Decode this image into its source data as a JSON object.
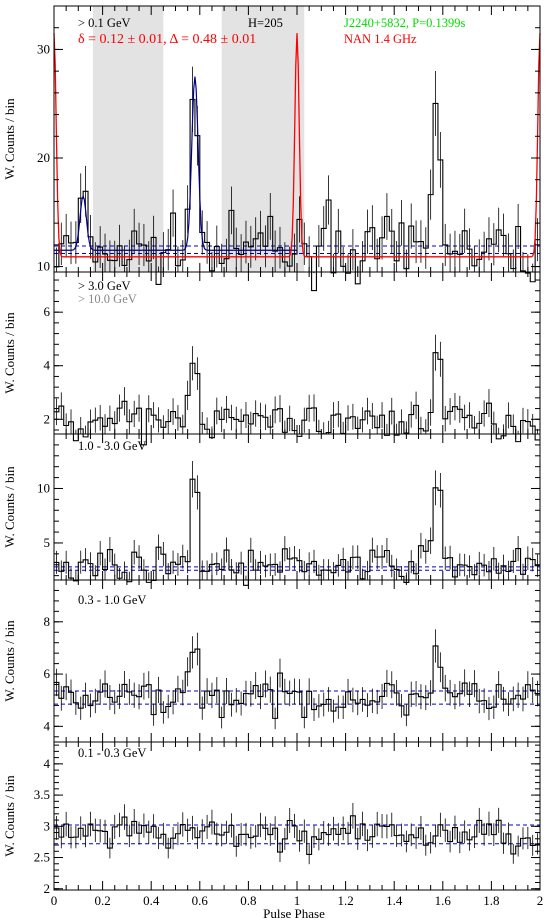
{
  "chart_data": [
    {
      "type": "line",
      "panel": "all",
      "ylabel": "W. Counts / bin",
      "ylim": [
        9.5,
        34
      ],
      "yticks": [
        10,
        20,
        30
      ],
      "xlim": [
        0,
        2
      ],
      "annotations": [
        {
          "text": "> 0.1 GeV",
          "color": "#000000",
          "pos": "top-left"
        },
        {
          "text": "δ = 0.12 ± 0.01, Δ = 0.48 ± 0.01",
          "color": "#ff0000",
          "pos": "top-left-2"
        },
        {
          "text": "H=205",
          "color": "#000000",
          "pos": "top-center"
        },
        {
          "text": "J2240+5832, P=0.1399s",
          "color": "#00dd00",
          "pos": "top-right"
        },
        {
          "text": "NAN 1.4 GHz",
          "color": "#ff0000",
          "pos": "top-right-2"
        }
      ],
      "shaded_phase_ranges": [
        [
          0.16,
          0.45
        ],
        [
          0.69,
          1.03
        ]
      ],
      "background_lines": [
        11.2,
        11.9
      ],
      "series": [
        {
          "style": "histogram",
          "color": "#000000",
          "peaks": [
            0.12,
            0.58,
            0.89,
            1.12,
            1.58
          ],
          "peak_values": [
            16.4,
            27.5,
            13.6,
            15.2,
            27.5
          ],
          "baseline": 11.3
        },
        {
          "style": "fit",
          "color": "#00008b",
          "peaks": [
            0.12,
            0.58
          ],
          "baseline": 11.5
        },
        {
          "style": "radio",
          "color": "#ff0000",
          "peak": 1.0,
          "peak_value": 31.5,
          "baseline": 10.9
        }
      ]
    },
    {
      "type": "line",
      "panel": "high",
      "ylabel": "W. Counts / bin",
      "ylim": [
        1.45,
        7.5
      ],
      "yticks": [
        2,
        4,
        6
      ],
      "xlim": [
        0,
        2
      ],
      "annotations": [
        {
          "text": "> 3.0 GeV",
          "color": "#000000",
          "pos": "top-left"
        },
        {
          "text": "> 10.0 GeV",
          "color": "#888888",
          "pos": "top-left-2"
        }
      ],
      "background_lines": [],
      "series": [
        {
          "style": "histogram",
          "color": "#000000",
          "peaks": [
            0.58,
            1.58
          ],
          "peak_values": [
            5.1,
            5.1
          ],
          "baseline": 1.9
        }
      ]
    },
    {
      "type": "line",
      "panel": "mid-high",
      "ylabel": "W. Counts / bin",
      "ylim": [
        1.6,
        15
      ],
      "yticks": [
        5,
        10
      ],
      "xlim": [
        0,
        2
      ],
      "annotations": [
        {
          "text": "1.0 - 3.0 GeV",
          "color": "#000000",
          "pos": "top-left"
        }
      ],
      "background_lines": [
        2.5,
        2.8
      ],
      "series": [
        {
          "style": "histogram",
          "color": "#000000",
          "peaks": [
            0.58,
            1.58
          ],
          "peak_values": [
            11.8,
            11.8
          ],
          "baseline": 2.9
        }
      ]
    },
    {
      "type": "line",
      "panel": "mid-low",
      "ylabel": "W. Counts / bin",
      "ylim": [
        3.4,
        9.6
      ],
      "yticks": [
        4,
        6,
        8
      ],
      "xlim": [
        0,
        2
      ],
      "annotations": [
        {
          "text": "0.3 - 1.0 GeV",
          "color": "#000000",
          "pos": "top-left"
        }
      ],
      "background_lines": [
        4.85,
        5.35
      ],
      "series": [
        {
          "style": "histogram",
          "color": "#000000",
          "peaks": [
            0.58,
            1.58
          ],
          "peak_values": [
            7.5,
            7.5
          ],
          "baseline": 5.1
        }
      ]
    },
    {
      "type": "line",
      "panel": "low",
      "ylabel": "W. Counts / bin",
      "ylim": [
        1.98,
        4.35
      ],
      "yticks": [
        2,
        2.5,
        3,
        3.5,
        4
      ],
      "xlim": [
        0,
        2
      ],
      "xlabel": "Pulse Phase",
      "xticks": [
        0,
        0.2,
        0.4,
        0.6,
        0.8,
        1,
        1.2,
        1.4,
        1.6,
        1.8,
        2
      ],
      "annotations": [
        {
          "text": "0.1 - 0.3 GeV",
          "color": "#000000",
          "pos": "top-left"
        }
      ],
      "background_lines": [
        2.72,
        3.02
      ],
      "series": [
        {
          "style": "histogram",
          "color": "#000000",
          "peaks": [],
          "peak_values": [],
          "baseline": 2.87
        }
      ]
    }
  ]
}
